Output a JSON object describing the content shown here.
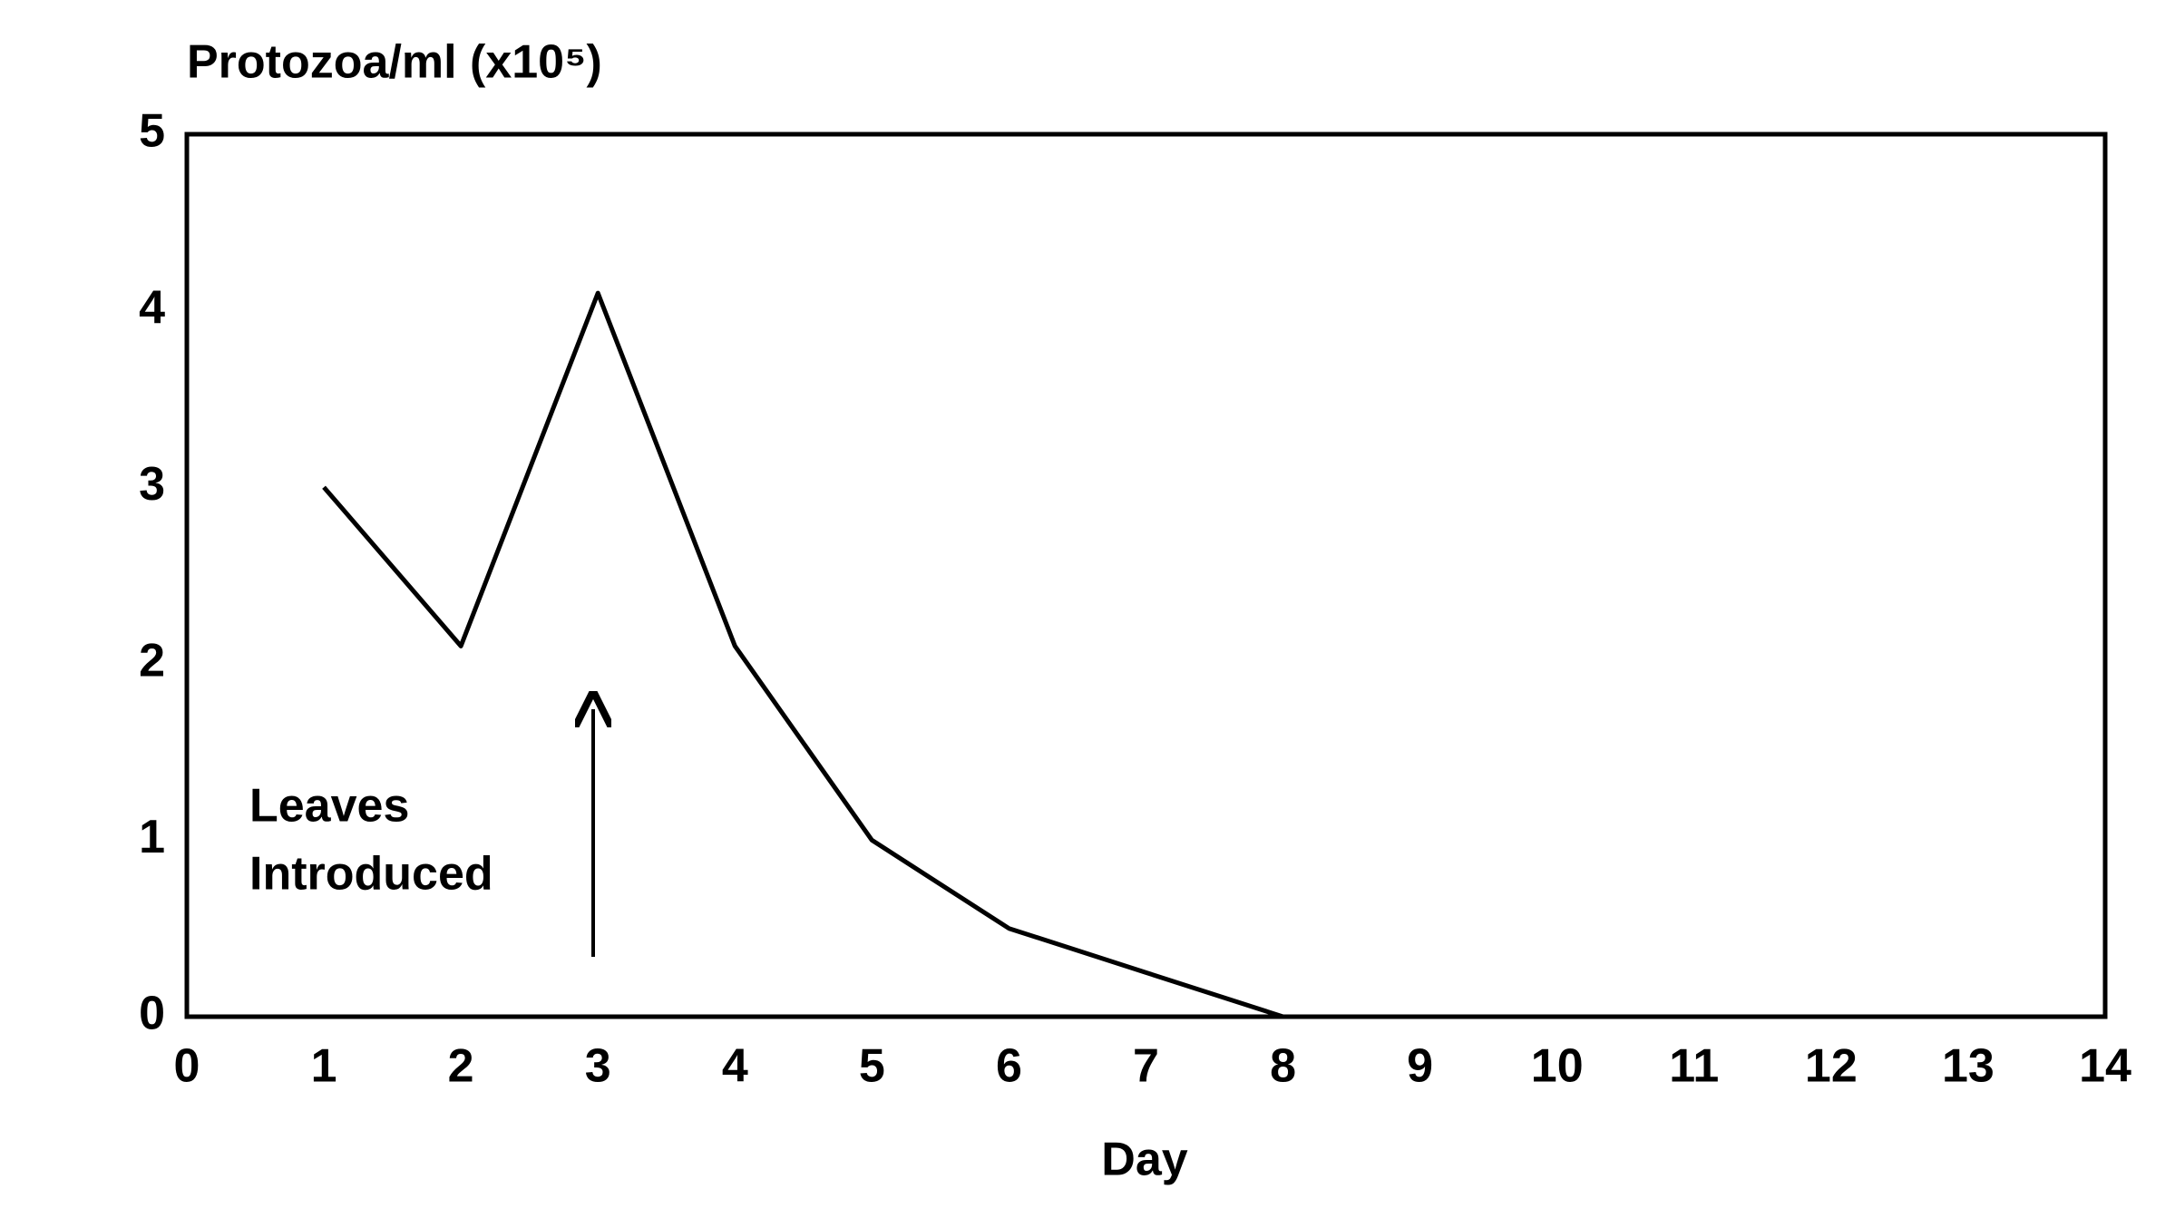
{
  "chart_data": {
    "type": "line",
    "y_label": "Protozoa/ml (x10⁵)",
    "x_label": "Day",
    "annotation": [
      "Leaves",
      "Introduced"
    ],
    "x": [
      1,
      2,
      3,
      4,
      5,
      6,
      7,
      8
    ],
    "series": [
      {
        "name": "Protozoa",
        "color": "#000000",
        "values": [
          3.0,
          2.1,
          4.1,
          2.1,
          1.0,
          0.5,
          0.25,
          0
        ]
      }
    ],
    "xlim": [
      0,
      14
    ],
    "xticks": [
      0,
      1,
      2,
      3,
      4,
      5,
      6,
      7,
      8,
      9,
      10,
      11,
      12,
      13,
      14
    ],
    "ylim": [
      0,
      5
    ],
    "yticks": [
      0,
      1,
      2,
      3,
      4,
      5
    ],
    "grid": false
  }
}
